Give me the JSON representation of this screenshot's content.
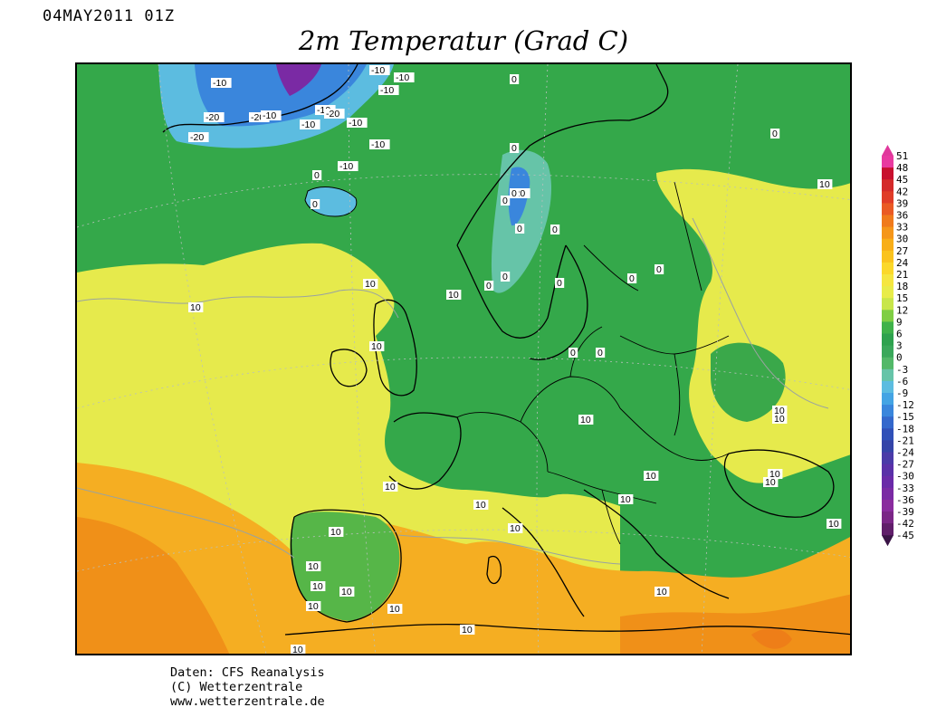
{
  "header": {
    "run_date": "04MAY2011 01Z",
    "title": "2m Temperatur (Grad C)"
  },
  "credits": {
    "line1": "Daten: CFS Reanalysis",
    "line2": "(C) Wetterzentrale",
    "line3": "www.wetterzentrale.de"
  },
  "colorscale": {
    "labels": [
      "51",
      "48",
      "45",
      "42",
      "39",
      "36",
      "33",
      "30",
      "27",
      "24",
      "21",
      "18",
      "15",
      "12",
      "9",
      "6",
      "3",
      "0",
      "-3",
      "-6",
      "-9",
      "-12",
      "-15",
      "-18",
      "-21",
      "-24",
      "-27",
      "-30",
      "-33",
      "-36",
      "-39",
      "-42",
      "-45"
    ],
    "colors": [
      "#e83aa0",
      "#c8102e",
      "#d42a2a",
      "#e03c28",
      "#ea5a24",
      "#f07a1c",
      "#f5961a",
      "#f8ae18",
      "#fac31e",
      "#fbd82a",
      "#f5e640",
      "#e8ec4a",
      "#c8e64a",
      "#7fce44",
      "#3fb24a",
      "#2ea24e",
      "#3aa85a",
      "#52b868",
      "#66c4a8",
      "#5cbce0",
      "#44a4e4",
      "#3a86dc",
      "#3468cc",
      "#3050b8",
      "#3444a8",
      "#4a3aa8",
      "#5a30a8",
      "#6a2aa8",
      "#7a2aa4",
      "#8a2c9e",
      "#7a2686",
      "#601e6a"
    ],
    "top_color": "#e0389c",
    "bottom_color": "#3a1446"
  },
  "map": {
    "background_color": "#34a84a",
    "contour_labels": [
      "-10",
      "-10",
      "-10",
      "-10",
      "-10",
      "-20",
      "-20",
      "-20",
      "-10",
      "-20",
      "-10",
      "-10",
      "-10",
      "-10",
      "-20",
      "0",
      "0",
      "0",
      "0",
      "0",
      "0",
      "0",
      "0",
      "0",
      "0",
      "0",
      "0",
      "0",
      "0",
      "0",
      "0",
      "10",
      "10",
      "10",
      "10",
      "10",
      "10",
      "10",
      "10",
      "10",
      "10",
      "10",
      "10",
      "10",
      "10",
      "10",
      "10",
      "10",
      "10",
      "10",
      "10",
      "10",
      "10",
      "10",
      "10",
      "10"
    ]
  }
}
